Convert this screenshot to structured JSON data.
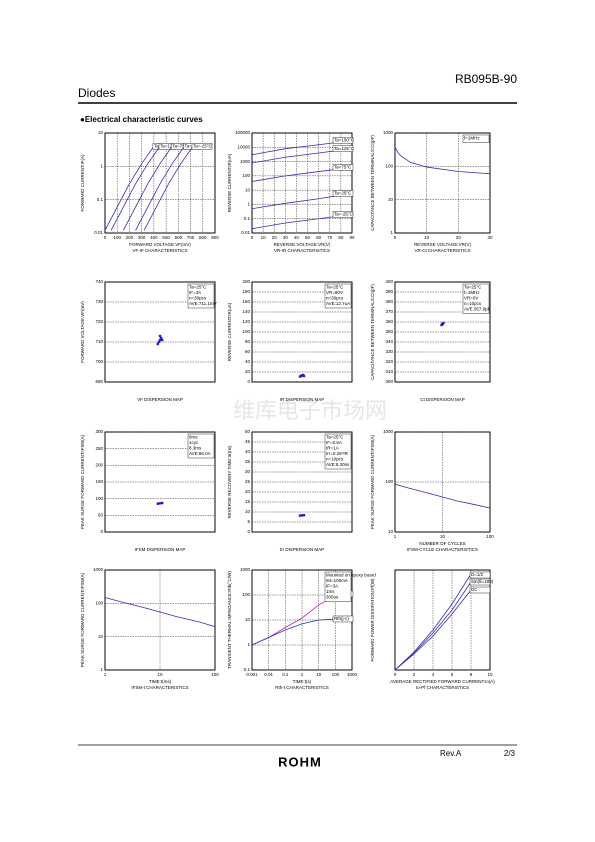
{
  "header": {
    "part": "RB095B-90",
    "category": "Diodes",
    "section": "●Electrical characteristic curves"
  },
  "watermark": "维库电子市场网",
  "footer": {
    "revision": "Rev.A",
    "page": "2/3",
    "brand": "ROHM"
  },
  "chart_data": [
    {
      "type": "line",
      "ylabel": "FORWARD CURRENT:IF(A)",
      "xlabel": "FORWARD VOLTAGE:VF(mV)",
      "caption": "VF-IF CHARACTERISTICS",
      "xlim": [
        0,
        900
      ],
      "xticks": [
        0,
        100,
        200,
        300,
        400,
        500,
        600,
        700,
        800,
        900
      ],
      "ylim": [
        0.01,
        10
      ],
      "yticks": [
        0.01,
        0.1,
        1,
        10
      ],
      "yscale": "log",
      "grid": true,
      "series": [
        {
          "name": "Ta=150°C",
          "color": "#3030b0",
          "x": [
            0,
            100,
            200,
            300,
            400
          ],
          "values": [
            0.012,
            0.06,
            0.3,
            1.2,
            4
          ]
        },
        {
          "name": "Ta=125°C",
          "color": "#3030b0",
          "x": [
            50,
            150,
            250,
            350,
            450
          ],
          "values": [
            0.012,
            0.06,
            0.3,
            1.2,
            4
          ]
        },
        {
          "name": "Ta=75°C",
          "color": "#3030b0",
          "x": [
            150,
            250,
            350,
            450,
            550
          ],
          "values": [
            0.012,
            0.06,
            0.3,
            1.2,
            4
          ]
        },
        {
          "name": "Ta=25°C",
          "color": "#3030b0",
          "x": [
            250,
            350,
            450,
            550,
            650
          ],
          "values": [
            0.012,
            0.06,
            0.3,
            1.2,
            4
          ]
        },
        {
          "name": "Ta=-25°C",
          "color": "#3030b0",
          "x": [
            320,
            420,
            520,
            620,
            720
          ],
          "values": [
            0.012,
            0.06,
            0.3,
            1.2,
            4
          ]
        }
      ]
    },
    {
      "type": "line",
      "ylabel": "REVERSE CURRENT:IR(uA)",
      "xlabel": "REVERSE VOLTAGE:VR(V)",
      "caption": "VR-IR CHARACTERISTICS",
      "xlim": [
        0,
        90
      ],
      "xticks": [
        0,
        10,
        20,
        30,
        40,
        50,
        60,
        70,
        80,
        90
      ],
      "ylim": [
        0.01,
        100000
      ],
      "yticks": [
        0.01,
        0.1,
        1,
        10,
        100,
        1000,
        10000,
        100000
      ],
      "yscale": "log",
      "grid": true,
      "x": [
        0,
        30,
        60,
        90
      ],
      "series": [
        {
          "name": "Ta=150°C",
          "color": "#3030b0",
          "values": [
            3000,
            8000,
            15000,
            30000
          ]
        },
        {
          "name": "Ta=125°C",
          "color": "#3030b0",
          "values": [
            800,
            2000,
            4000,
            8000
          ]
        },
        {
          "name": "Ta=75°C",
          "color": "#3030b0",
          "values": [
            40,
            100,
            200,
            400
          ]
        },
        {
          "name": "Ta=25°C",
          "color": "#3030b0",
          "values": [
            0.5,
            1.2,
            2.5,
            6
          ]
        },
        {
          "name": "Ta=-25°C",
          "color": "#3030b0",
          "values": [
            0.02,
            0.05,
            0.1,
            0.2
          ]
        }
      ]
    },
    {
      "type": "line",
      "ylabel": "CAPACITANCE BETWEEN TERMINALS:Ct(pF)",
      "xlabel": "REVERSE VOLTAGE:VR(V)",
      "caption": "VR-Ct CHARACTERISTICS",
      "xlim": [
        0,
        30
      ],
      "xticks": [
        0,
        10,
        20,
        30
      ],
      "ylim": [
        1,
        1000
      ],
      "yticks": [
        1,
        10,
        100,
        1000
      ],
      "yscale": "log",
      "grid": true,
      "annotations": [
        "f=1MHz"
      ],
      "x": [
        0,
        1,
        2,
        5,
        10,
        20,
        30
      ],
      "series": [
        {
          "color": "#3030b0",
          "values": [
            380,
            250,
            200,
            130,
            95,
            70,
            60
          ]
        }
      ]
    },
    {
      "type": "scatter",
      "ylabel": "FORWARD VOLTAGE:VF(mV)",
      "caption": "VF DISPERSION MAP",
      "xlim": [
        0,
        10
      ],
      "ylim": [
        690,
        740
      ],
      "yticks": [
        690,
        700,
        710,
        720,
        730,
        740
      ],
      "grid": true,
      "annotations": [
        "Ta=25°C",
        "IF=3A",
        "n=30pcs",
        "AVE:711.1mV"
      ],
      "x": [
        4.8,
        4.9,
        5,
        5.1,
        5.2,
        5
      ],
      "series": [
        {
          "color": "#2020c0",
          "values": [
            709,
            710,
            711,
            712,
            711,
            713
          ]
        }
      ]
    },
    {
      "type": "scatter",
      "ylabel": "REVERSE CURRENT:IR(uA)",
      "caption": "IR DISPERSION MAP",
      "xlim": [
        0,
        10
      ],
      "ylim": [
        0,
        200
      ],
      "yticks": [
        0,
        20,
        40,
        60,
        80,
        100,
        120,
        140,
        160,
        180,
        200
      ],
      "grid": true,
      "annotations": [
        "Ta=25°C",
        "VR=90V",
        "n=30pcs",
        "AVE:12.7uA"
      ],
      "x": [
        4.8,
        4.9,
        5,
        5.1,
        5.2,
        5
      ],
      "series": [
        {
          "color": "#2020c0",
          "values": [
            11,
            12,
            13,
            14,
            12,
            13
          ]
        }
      ]
    },
    {
      "type": "scatter",
      "ylabel": "CAPACITANCE BETWEEN TERMINALS:Ct(pF)",
      "caption": "Ct DISPERSION MAP",
      "xlim": [
        0,
        10
      ],
      "ylim": [
        300,
        400
      ],
      "yticks": [
        300,
        310,
        320,
        330,
        340,
        350,
        360,
        370,
        380,
        390,
        400
      ],
      "grid": true,
      "annotations": [
        "Ta=25°C",
        "f=1MHz",
        "VR=0V",
        "n=10pcs",
        "AVE:357.9pF"
      ],
      "x": [
        4.9,
        5,
        5.1,
        5
      ],
      "series": [
        {
          "color": "#2020c0",
          "values": [
            357,
            358,
            359,
            358
          ]
        }
      ]
    },
    {
      "type": "scatter",
      "ylabel": "PEAK SURGE FORWARD CURRENT:IFSM(A)",
      "caption": "IFSM DISPERSION MAP",
      "xlim": [
        0,
        10
      ],
      "ylim": [
        0,
        300
      ],
      "yticks": [
        0,
        50,
        100,
        150,
        200,
        250,
        300
      ],
      "grid": true,
      "annotations": [
        "8ms",
        "1cyc",
        "8.3ms",
        "AVE:86.0A"
      ],
      "x": [
        4.8,
        5,
        5.2
      ],
      "series": [
        {
          "color": "#2020c0",
          "values": [
            85,
            86,
            87
          ]
        }
      ]
    },
    {
      "type": "scatter",
      "ylabel": "REVERSE RECOVERY TIME:trr(ns)",
      "caption": "trr DISPERSION MAP",
      "xlim": [
        0,
        10
      ],
      "ylim": [
        0,
        50
      ],
      "yticks": [
        0,
        5,
        10,
        15,
        20,
        25,
        30,
        35,
        40,
        45,
        50
      ],
      "grid": true,
      "annotations": [
        "Ta=25°C",
        "IF=0.5A",
        "IR=1A",
        "Irr=0.25*IR",
        "n=10pcs",
        "AVE:8.30ns"
      ],
      "x": [
        4.8,
        5,
        5.2
      ],
      "series": [
        {
          "color": "#2020c0",
          "values": [
            8.2,
            8.3,
            8.4
          ]
        }
      ]
    },
    {
      "type": "line",
      "ylabel": "PEAK SURGE FORWARD CURRENT:IFSM(A)",
      "xlabel": "NUMBER OF CYCLES",
      "caption": "IFSM-CYCLE CHARACTERISTICS",
      "xlim": [
        1,
        100
      ],
      "xticks": [
        1,
        10,
        100
      ],
      "xscale": "log",
      "ylim": [
        10,
        1000
      ],
      "yticks": [
        10,
        100,
        1000
      ],
      "yscale": "log",
      "grid": true,
      "x": [
        1,
        2,
        5,
        10,
        20,
        50,
        100
      ],
      "series": [
        {
          "color": "#3030b0",
          "values": [
            90,
            75,
            60,
            50,
            42,
            35,
            30
          ]
        }
      ]
    },
    {
      "type": "line",
      "ylabel": "PEAK SURGE FORWARD CURRENT:IFSM(A)",
      "xlabel": "TIME:t(ms)",
      "caption": "IFSM-t CHARACTERISTICS",
      "xlim": [
        1,
        100
      ],
      "xticks": [
        1,
        10,
        100
      ],
      "xscale": "log",
      "ylim": [
        1,
        1000
      ],
      "yticks": [
        1,
        10,
        100,
        1000
      ],
      "yscale": "log",
      "grid": true,
      "x": [
        1,
        2,
        5,
        10,
        20,
        50,
        100
      ],
      "series": [
        {
          "color": "#3030b0",
          "values": [
            150,
            110,
            75,
            55,
            40,
            28,
            20
          ]
        }
      ]
    },
    {
      "type": "line",
      "ylabel": "TRANSIENT THERMAL IMPEDANCE:Rth(°C/W)",
      "xlabel": "TIME:t(s)",
      "caption": "Rth-t CHARACTERISTICS",
      "xlim": [
        0.001,
        1000
      ],
      "xticks": [
        0.001,
        0.01,
        0.1,
        1,
        10,
        100,
        1000
      ],
      "xscale": "log",
      "ylim": [
        0.1,
        1000
      ],
      "yticks": [
        0.1,
        1,
        10,
        100,
        1000
      ],
      "yscale": "log",
      "grid": true,
      "annotations": [
        "Mounted on epoxy board",
        "IM=100mA",
        "IF=3A",
        "1ms",
        "300us"
      ],
      "x": [
        0.001,
        0.01,
        0.1,
        1,
        10,
        100,
        1000
      ],
      "series": [
        {
          "name": "Rth(j-a)",
          "color": "#c020c0",
          "values": [
            1,
            2,
            5,
            12,
            40,
            90,
            110
          ]
        },
        {
          "name": "Rth(j-c)",
          "color": "#3030b0",
          "values": [
            1,
            2,
            4,
            7,
            10,
            11,
            11
          ]
        }
      ]
    },
    {
      "type": "line",
      "ylabel": "FORWARD POWER DISSIPATION:Pf(W)",
      "xlabel": "AVERAGE RECTIFIED FORWARD CURRENT:Io(A)",
      "caption": "Io-Pf CHARACTERISTICS",
      "xlim": [
        0,
        10
      ],
      "xticks": [
        0,
        2,
        4,
        6,
        8,
        10
      ],
      "ylim": [
        0,
        5
      ],
      "grid": true,
      "x": [
        0,
        2,
        4,
        6,
        8
      ],
      "series": [
        {
          "name": "D=1/2",
          "color": "#3030b0",
          "values": [
            0,
            0.9,
            2.0,
            3.3,
            4.8
          ]
        },
        {
          "name": "DC",
          "color": "#3030b0",
          "values": [
            0,
            0.8,
            1.7,
            2.8,
            4
          ]
        },
        {
          "name": "Sin(θ=180)",
          "color": "#3030b0",
          "values": [
            0,
            0.85,
            1.85,
            3,
            4.4
          ]
        }
      ]
    }
  ]
}
